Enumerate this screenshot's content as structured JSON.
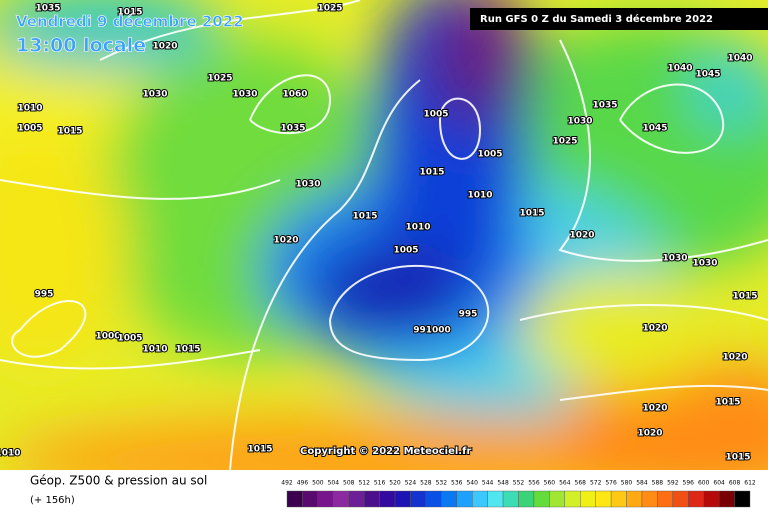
{
  "header": {
    "title": "Vendredi 9 décembre 2022",
    "time": "13:00 locale",
    "run": "Run GFS 0 Z du Samedi 3 décembre 2022"
  },
  "map": {
    "isobar_labels": [
      "1035",
      "1015",
      "1020",
      "1025",
      "1030",
      "1030",
      "1060",
      "1035",
      "1030",
      "1020",
      "1015",
      "1010",
      "1005",
      "1015",
      "995",
      "1000",
      "1005",
      "1010",
      "1015",
      "1005",
      "1015",
      "1005",
      "1010",
      "1015",
      "1010",
      "1005",
      "995",
      "991000",
      "1020",
      "1030",
      "1030",
      "1015",
      "1020",
      "1020",
      "1035",
      "1030",
      "1025",
      "1040",
      "1045",
      "1045",
      "1040",
      "1020",
      "1015",
      "1020",
      "1015",
      "1015",
      "1010",
      "1025"
    ],
    "copyright": "Copyright © 2022 Meteociel.fr"
  },
  "footer": {
    "title": "Géop. Z500 & pression au sol",
    "lead": "(+ 156h)"
  },
  "legend": {
    "values": [
      492,
      496,
      500,
      504,
      508,
      512,
      516,
      520,
      524,
      528,
      532,
      536,
      540,
      544,
      548,
      552,
      556,
      560,
      564,
      568,
      572,
      576,
      580,
      584,
      588,
      592,
      596,
      600,
      604,
      608,
      612
    ],
    "colors": [
      "#3c0050",
      "#5a0a6e",
      "#78148c",
      "#8c28a0",
      "#6e1e96",
      "#4b0f8c",
      "#320aa0",
      "#1e14b4",
      "#1432cd",
      "#0a50e6",
      "#0a78f0",
      "#1ea0ff",
      "#3cc8ff",
      "#50e6f0",
      "#3cdcb4",
      "#3cd278",
      "#64dc3c",
      "#a0e632",
      "#d2f028",
      "#f0f014",
      "#ffe614",
      "#ffc814",
      "#ffaa14",
      "#ff8c14",
      "#ff6e14",
      "#f05014",
      "#dc2814",
      "#b40a0a",
      "#780000",
      "#000000"
    ]
  }
}
